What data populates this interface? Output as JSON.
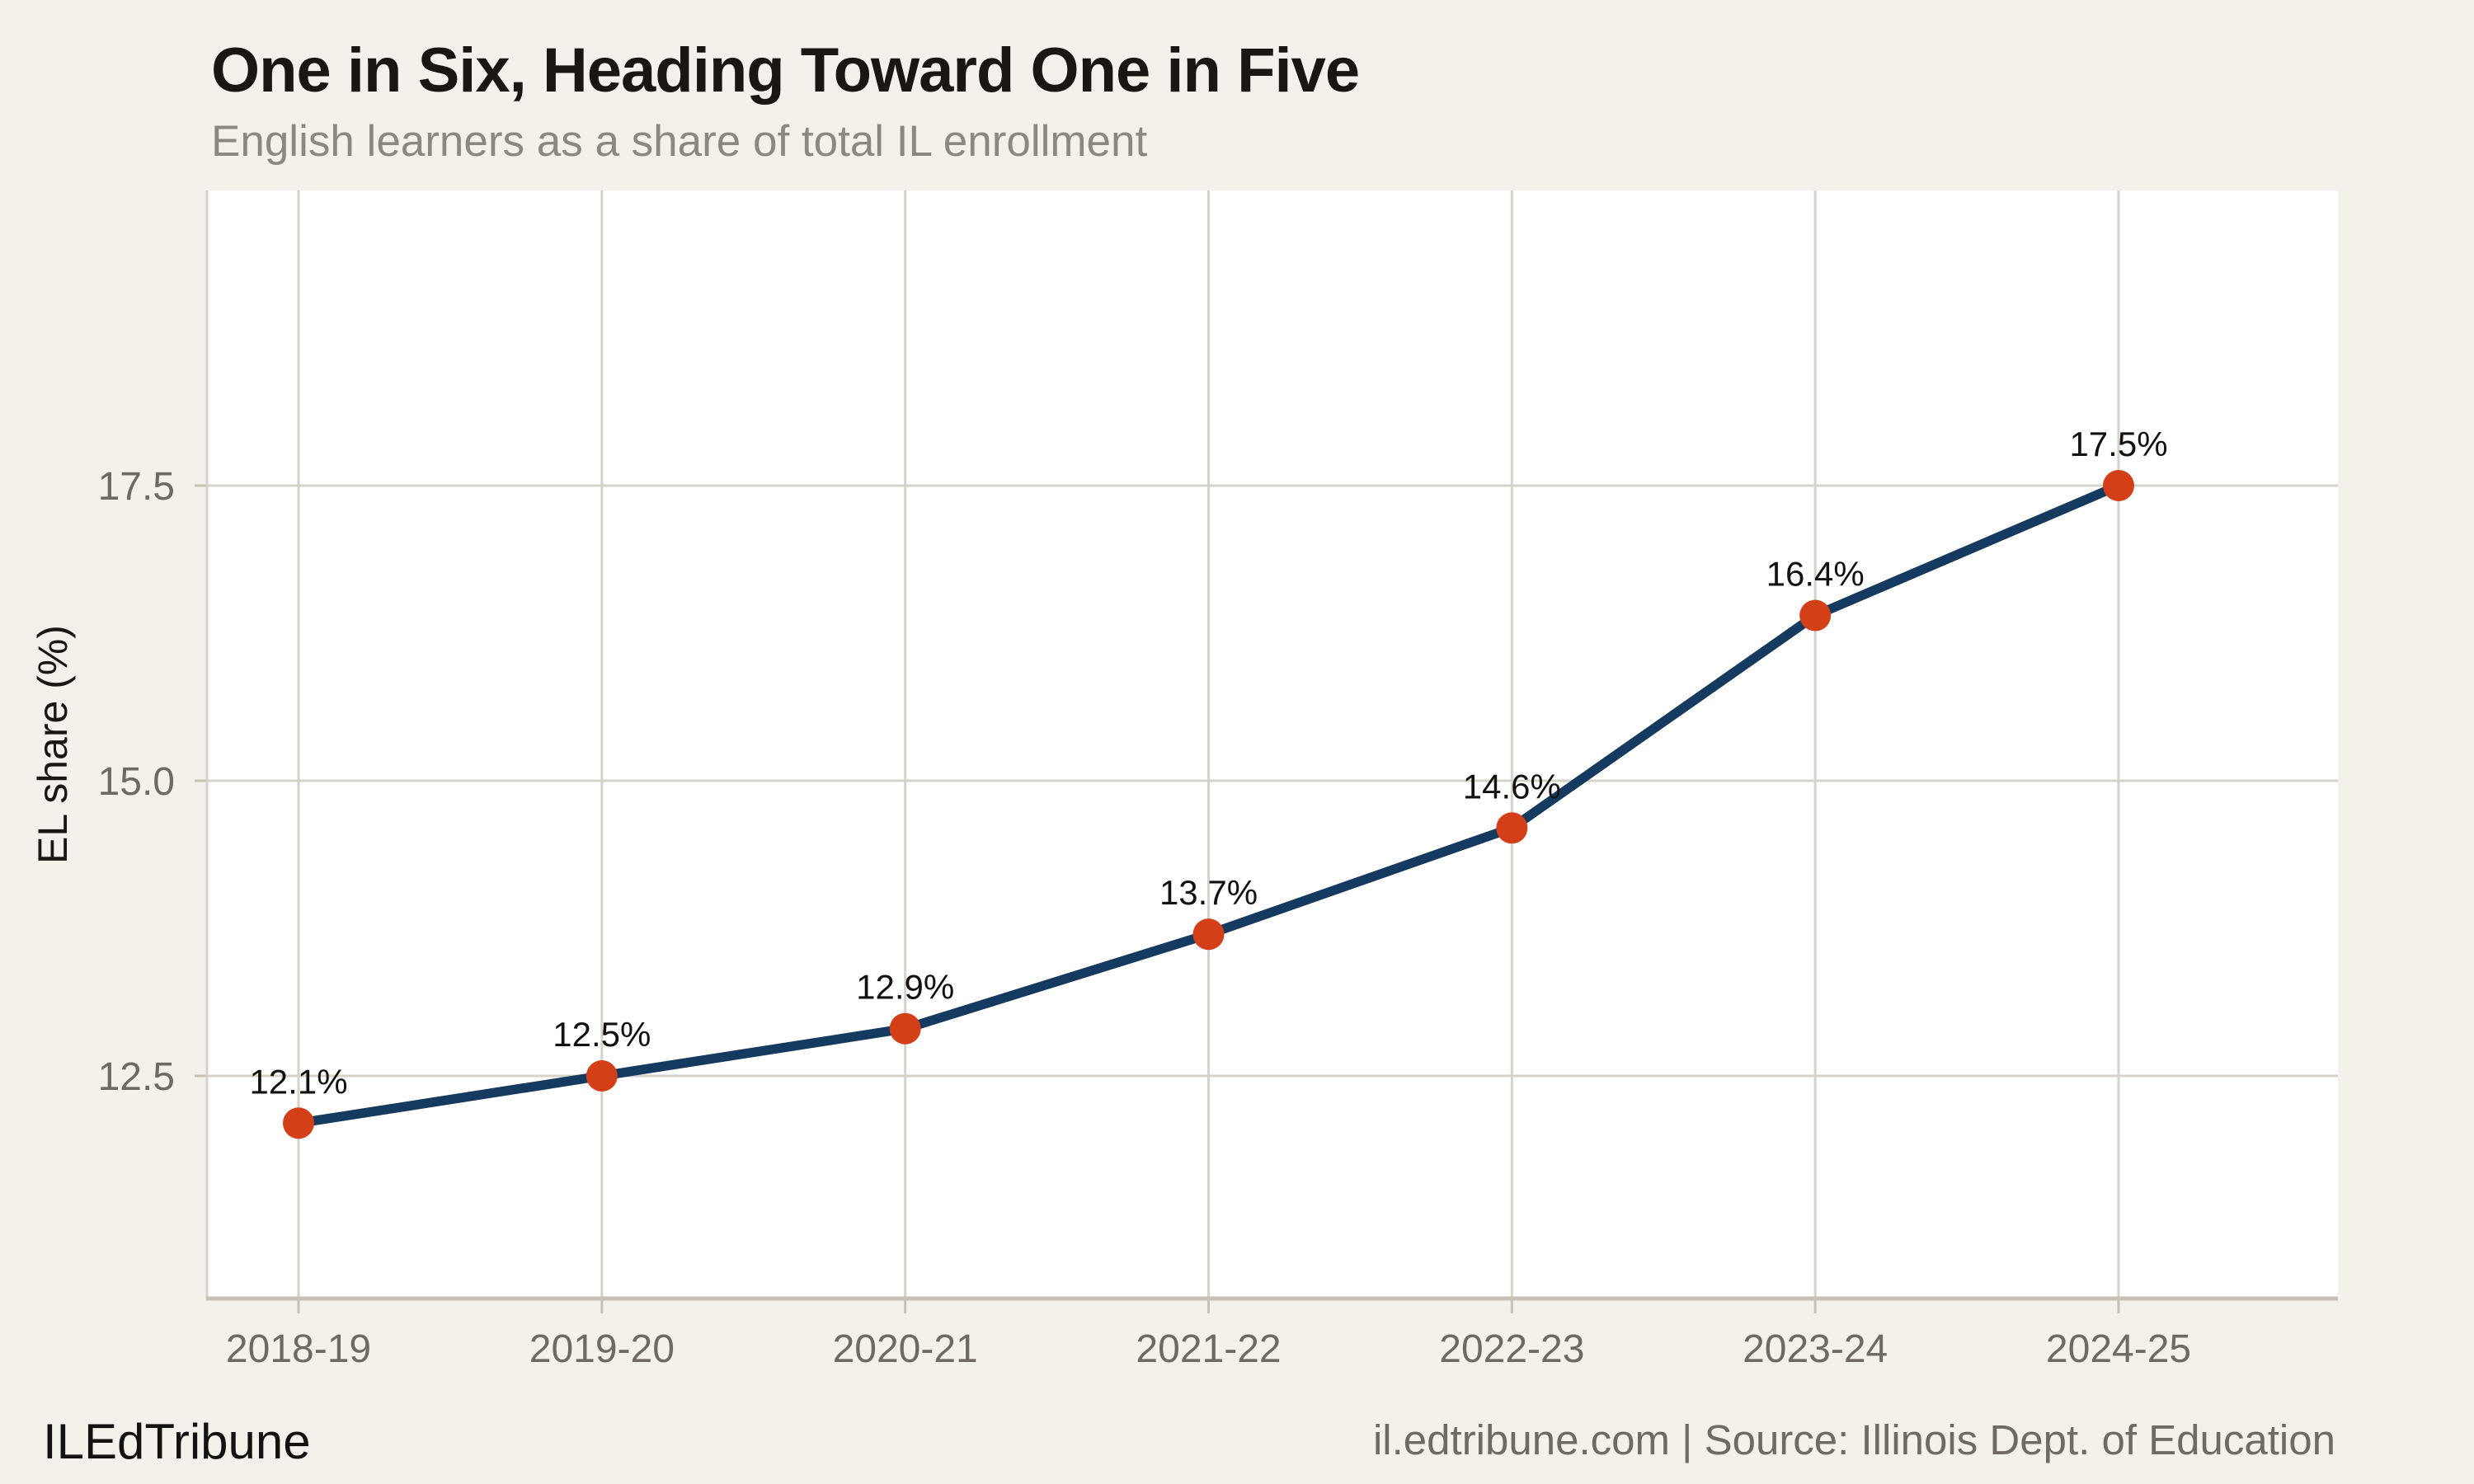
{
  "header": {
    "title": "One in Six, Heading Toward One in Five",
    "subtitle": "English learners as a share of total IL enrollment"
  },
  "footer": {
    "brand": "ILEdTribune",
    "credit": "il.edtribune.com | Source: Illinois Dept. of Education"
  },
  "chart_data": {
    "type": "line",
    "title": "One in Six, Heading Toward One in Five",
    "subtitle": "English learners as a share of total IL enrollment",
    "categories": [
      "2018-19",
      "2019-20",
      "2020-21",
      "2021-22",
      "2022-23",
      "2023-24",
      "2024-25"
    ],
    "values": [
      12.1,
      12.5,
      12.9,
      13.7,
      14.6,
      16.4,
      17.5
    ],
    "point_labels": [
      "12.1%",
      "12.5%",
      "12.9%",
      "13.7%",
      "14.6%",
      "16.4%",
      "17.5%"
    ],
    "xlabel": "",
    "ylabel": "EL share (%)",
    "yticks": [
      {
        "value": 12.5,
        "label": "12.5"
      },
      {
        "value": 15.0,
        "label": "15.0"
      },
      {
        "value": 17.5,
        "label": "17.5"
      }
    ],
    "ylim": [
      10.6,
      20.0
    ],
    "grid": true,
    "legend": "none",
    "colors": {
      "line": "#143a60",
      "marker": "#d33f16",
      "grid": "#d7d2c7",
      "axis": "#c8c2b6",
      "tick_label": "#6e6a63",
      "data_label": "#141210",
      "plot_bg": "#ffffff",
      "page_bg": "#f4f1ea"
    }
  }
}
